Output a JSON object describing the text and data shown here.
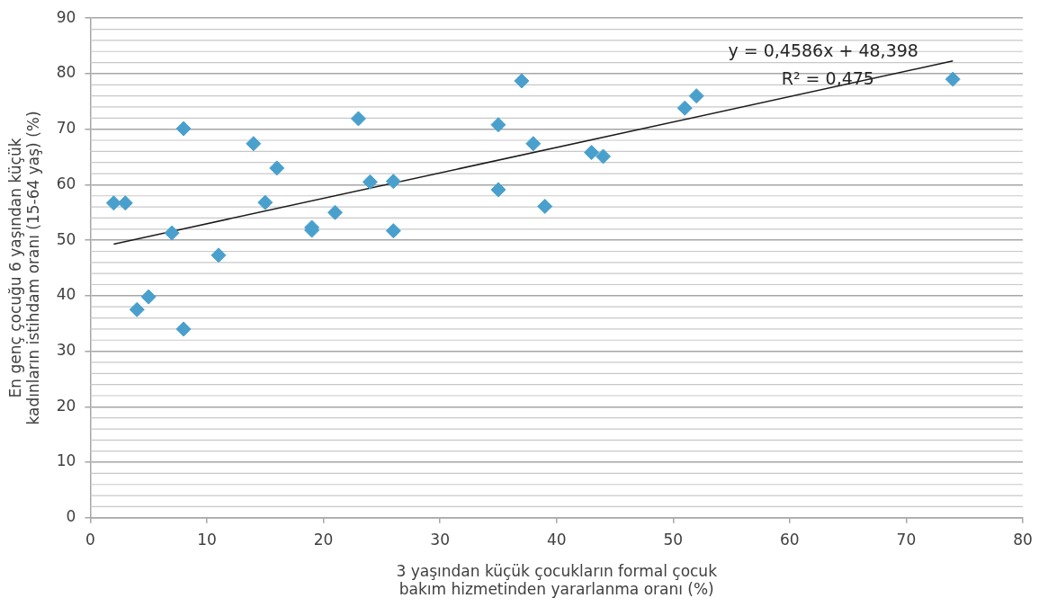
{
  "chart_data": {
    "type": "scatter",
    "xlabel": "3 yaşından küçük çocukların formal çocuk bakım hizmetinden yararlanma oranı (%)",
    "ylabel": "En genç çocuğu 6 yaşından küçük kadınların istihdam oranı (15-64 yaş) (%)",
    "series": [
      {
        "color": "#4aa0cd",
        "marker": "diamond",
        "x": [
          2,
          3,
          4,
          5,
          7,
          8,
          8,
          11,
          14,
          15,
          16,
          19,
          19,
          21,
          23,
          24,
          26,
          26,
          35,
          35,
          37,
          38,
          39,
          43,
          44,
          51,
          52,
          74
        ],
        "values": [
          56.7,
          56.7,
          37.5,
          39.8,
          51.3,
          70.1,
          34,
          47.3,
          67.4,
          56.8,
          63,
          52.3,
          51.8,
          55,
          71.9,
          60.5,
          60.6,
          51.7,
          70.8,
          59.1,
          78.7,
          67.4,
          56.1,
          65.8,
          65.1,
          73.8,
          76,
          79
        ]
      },
      {
        "type": "line",
        "color": "#1a1a1a",
        "x": [
          2,
          74
        ],
        "values": [
          49.3,
          82.3
        ]
      }
    ],
    "xlim": [
      0,
      80
    ],
    "xticks": [
      0,
      10,
      20,
      30,
      40,
      50,
      60,
      70,
      80
    ],
    "ylim": [
      0,
      90
    ],
    "yticks": [
      0,
      10,
      20,
      30,
      40,
      50,
      60,
      70,
      80,
      90
    ],
    "grid": "y",
    "legend": false,
    "annotations": [
      "y = 0,4586x + 48,398",
      "R² = 0,475"
    ]
  }
}
